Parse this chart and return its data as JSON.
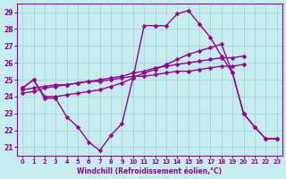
{
  "title": "",
  "xlabel": "Windchill (Refroidissement éolien,°C)",
  "ylabel": "",
  "xlim": [
    -0.5,
    23.5
  ],
  "ylim": [
    20.5,
    29.5
  ],
  "yticks": [
    21,
    22,
    23,
    24,
    25,
    26,
    27,
    28,
    29
  ],
  "xtick_labels": [
    "0",
    "1",
    "2",
    "3",
    "4",
    "5",
    "6",
    "7",
    "8",
    "9",
    "10",
    "11",
    "12",
    "13",
    "14",
    "15",
    "16",
    "17",
    "18",
    "19",
    "20",
    "21",
    "22",
    "23"
  ],
  "xtick_pos": [
    0,
    1,
    2,
    3,
    4,
    5,
    6,
    7,
    8,
    9,
    10,
    11,
    12,
    13,
    14,
    15,
    16,
    17,
    18,
    19,
    20,
    21,
    22,
    23
  ],
  "bg_color": "#c5ecee",
  "grid_color": "#aad8da",
  "line_color": "#990099",
  "line_width": 1.0,
  "marker": "D",
  "marker_size": 2.5,
  "series": [
    [
      24.5,
      25.0,
      23.9,
      23.9,
      22.8,
      22.2,
      21.3,
      20.8,
      21.7,
      22.4,
      25.1,
      28.2,
      28.2,
      28.2,
      28.9,
      29.1,
      28.3,
      27.5,
      26.4,
      25.4,
      23.0,
      22.2,
      21.5,
      21.5
    ],
    [
      24.4,
      24.5,
      24.6,
      24.7,
      24.7,
      24.8,
      24.9,
      24.9,
      25.0,
      25.1,
      25.2,
      25.2,
      25.3,
      25.4,
      25.5,
      25.5,
      25.6,
      25.7,
      25.8,
      25.8,
      25.9,
      null,
      null,
      null
    ],
    [
      24.2,
      24.3,
      24.5,
      24.6,
      24.7,
      24.8,
      24.9,
      25.0,
      25.1,
      25.2,
      25.4,
      25.5,
      25.7,
      25.8,
      25.9,
      26.0,
      26.1,
      26.2,
      26.3,
      26.3,
      26.4,
      null,
      null,
      null
    ],
    [
      24.5,
      25.0,
      24.0,
      24.0,
      24.1,
      24.2,
      24.3,
      24.4,
      24.6,
      24.8,
      25.1,
      25.4,
      25.6,
      25.9,
      26.2,
      26.5,
      26.7,
      26.9,
      27.1,
      25.4,
      23.0,
      22.2,
      21.5,
      21.5
    ]
  ]
}
